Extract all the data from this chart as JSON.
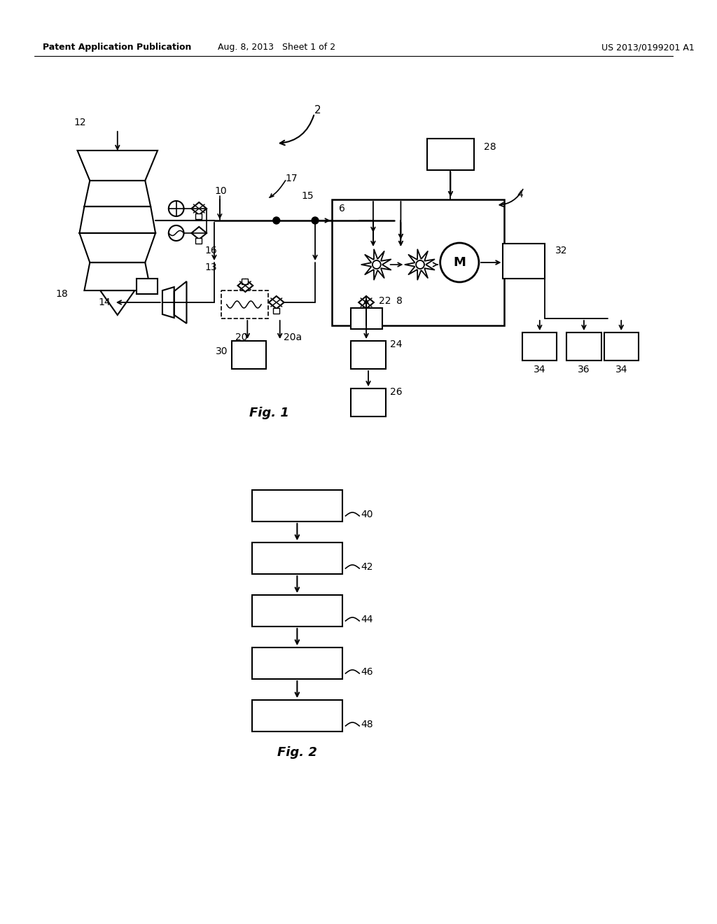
{
  "background_color": "#ffffff",
  "header_left": "Patent Application Publication",
  "header_mid": "Aug. 8, 2013   Sheet 1 of 2",
  "header_right": "US 2013/0199201 A1",
  "fig1_label": "Fig. 1",
  "fig2_label": "Fig. 2"
}
